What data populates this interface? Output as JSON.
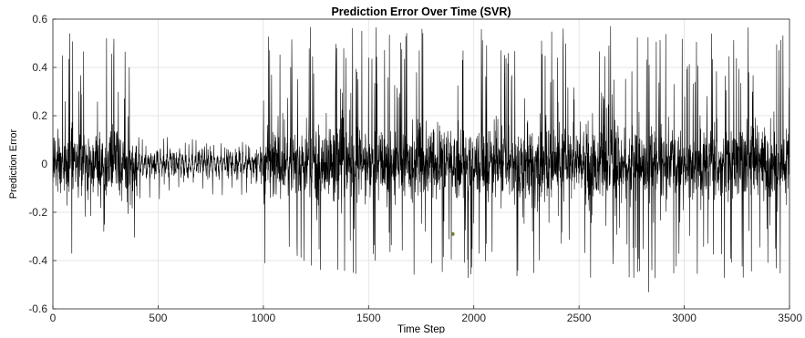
{
  "chart_data": {
    "type": "line",
    "title": "Prediction Error Over Time (SVR)",
    "xlabel": "Time Step",
    "ylabel": "Prediction Error",
    "xlim": [
      0,
      3500
    ],
    "ylim": [
      -0.6,
      0.6
    ],
    "x_ticks": [
      0,
      500,
      1000,
      1500,
      2000,
      2500,
      3000,
      3500
    ],
    "x_tick_labels": [
      "0",
      "500",
      "1000",
      "1500",
      "2000",
      "2500",
      "3000",
      "3500"
    ],
    "y_ticks": [
      -0.6,
      -0.4,
      -0.2,
      0,
      0.2,
      0.4,
      0.6
    ],
    "y_tick_labels": [
      "-0.6",
      "-0.4",
      "-0.2",
      "0",
      "0.2",
      "0.4",
      "0.6"
    ],
    "grid": true,
    "series": [
      {
        "name": "",
        "color": "#000000",
        "n_points": 3500,
        "segments": [
          {
            "x_start": 0,
            "x_end": 400,
            "typical_amplitude": 0.12,
            "max_positive": 0.54,
            "max_negative": -0.37
          },
          {
            "x_start": 400,
            "x_end": 1000,
            "typical_amplitude": 0.05,
            "max_positive": 0.11,
            "max_negative": -0.22
          },
          {
            "x_start": 1000,
            "x_end": 3500,
            "typical_amplitude": 0.14,
            "max_positive": 0.57,
            "max_negative": -0.53
          }
        ],
        "notable_points": [
          {
            "x": 80,
            "y": 0.54
          },
          {
            "x": 90,
            "y": -0.37
          },
          {
            "x": 255,
            "y": 0.52
          },
          {
            "x": 340,
            "y": 0.27
          },
          {
            "x": 1030,
            "y": 0.47
          },
          {
            "x": 1500,
            "y": 0.44
          },
          {
            "x": 1800,
            "y": -0.41
          },
          {
            "x": 2555,
            "y": -0.47
          },
          {
            "x": 2650,
            "y": 0.57
          },
          {
            "x": 2830,
            "y": -0.53
          },
          {
            "x": 3450,
            "y": 0.47
          }
        ]
      }
    ],
    "annotations": [
      {
        "type": "marker",
        "x": 1900,
        "y": -0.29,
        "color": "#7a7a3a"
      }
    ]
  }
}
